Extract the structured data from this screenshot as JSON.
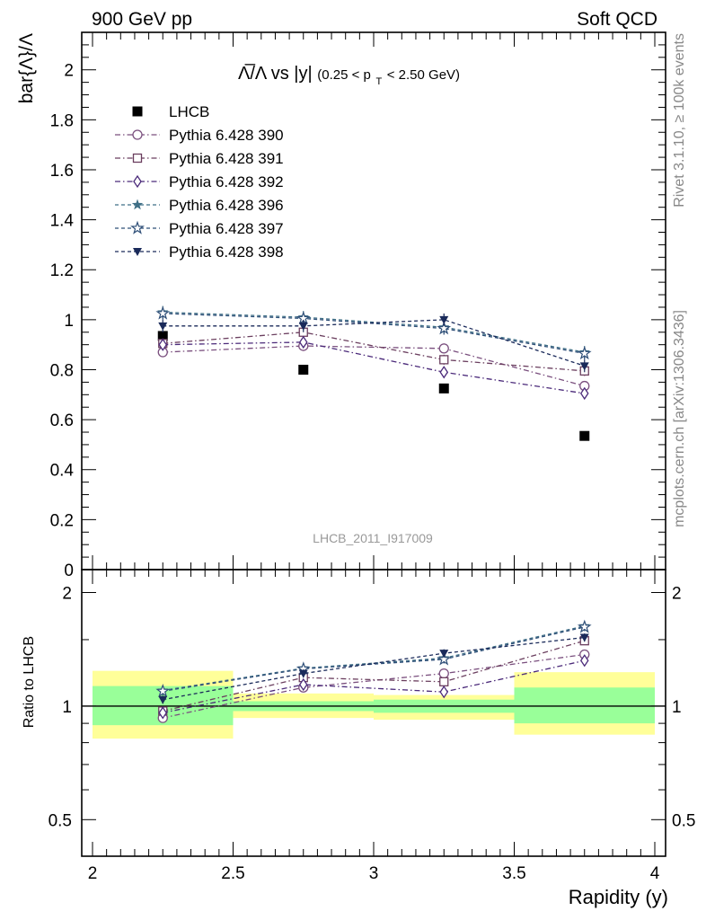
{
  "header": {
    "left": "900 GeV pp",
    "right": "Soft QCD"
  },
  "side_labels": {
    "top": "Rivet 3.1.10, ≥ 100k events",
    "bottom": "mcplots.cern.ch [arXiv:1306.3436]"
  },
  "watermark": "LHCB_2011_I917009",
  "colors": {
    "lhcb": "#000000",
    "p390": "#7a4f7e",
    "p391": "#6b3f5f",
    "p392": "#4b2a7a",
    "p396": "#3f6f86",
    "p397": "#2f4f78",
    "p398": "#1a2a5a",
    "band_green": "#99ff99",
    "band_yellow": "#ffff99"
  },
  "chart_data": [
    {
      "type": "scatter",
      "title_main": "Λ̅/Λ vs |y|",
      "title_sub": "(0.25 < p",
      "title_sub_index": "T",
      "title_sub_end": " < 2.50 GeV)",
      "ylabel": "bar{Λ}/Λ",
      "xlim": [
        2,
        4
      ],
      "ylim": [
        0,
        2.15
      ],
      "yticks": [
        0,
        0.2,
        0.4,
        0.6,
        0.8,
        1,
        1.2,
        1.4,
        1.6,
        1.8,
        2
      ],
      "ytick_labels": [
        "0",
        "0.2",
        "0.4",
        "0.6",
        "0.8",
        "1",
        "1.2",
        "1.4",
        "1.6",
        "1.8",
        "2"
      ],
      "legend_position": "top-left",
      "x": [
        2.25,
        2.75,
        3.25,
        3.75
      ],
      "series": [
        {
          "name": "LHCB",
          "marker": "square-filled",
          "color_key": "lhcb",
          "dash": "none",
          "values": [
            0.935,
            0.8,
            0.725,
            0.535
          ]
        },
        {
          "name": "Pythia 6.428 390",
          "marker": "circle-open",
          "color_key": "p390",
          "dash": "6,3,1.5,3",
          "values": [
            0.87,
            0.895,
            0.885,
            0.735
          ],
          "err": [
            0.02,
            0.02,
            0.02,
            0.02
          ]
        },
        {
          "name": "Pythia 6.428 391",
          "marker": "square-open",
          "color_key": "p391",
          "dash": "6,3,1.5,3",
          "values": [
            0.905,
            0.95,
            0.84,
            0.795
          ],
          "err": [
            0.02,
            0.02,
            0.02,
            0.02
          ]
        },
        {
          "name": "Pythia 6.428 392",
          "marker": "diamond-open",
          "color_key": "p392",
          "dash": "6,3,1.5,3",
          "values": [
            0.9,
            0.91,
            0.79,
            0.705
          ],
          "err": [
            0.02,
            0.02,
            0.02,
            0.02
          ]
        },
        {
          "name": "Pythia 6.428 396",
          "marker": "star-filled",
          "color_key": "p396",
          "dash": "4,3",
          "values": [
            1.03,
            1.01,
            0.97,
            0.87
          ],
          "err": [
            0.025,
            0.025,
            0.025,
            0.025
          ]
        },
        {
          "name": "Pythia 6.428 397",
          "marker": "star-open",
          "color_key": "p397",
          "dash": "4,3",
          "values": [
            1.025,
            1.005,
            0.965,
            0.865
          ],
          "err": [
            0.025,
            0.025,
            0.025,
            0.025
          ]
        },
        {
          "name": "Pythia 6.428 398",
          "marker": "triangle-down-filled",
          "color_key": "p398",
          "dash": "4,3",
          "values": [
            0.975,
            0.975,
            1.0,
            0.815
          ],
          "err": [
            0.025,
            0.025,
            0.025,
            0.025
          ]
        }
      ]
    },
    {
      "type": "scatter",
      "ylabel": "Ratio to LHCB",
      "xlabel": "Rapidity (y)",
      "xlim": [
        2,
        4
      ],
      "xticks": [
        2,
        2.5,
        3,
        3.5,
        4
      ],
      "xtick_labels": [
        "2",
        "2.5",
        "3",
        "3.5",
        "4"
      ],
      "ylim": [
        0.4,
        2.3
      ],
      "log_y": true,
      "yticks": [
        0.5,
        1,
        2
      ],
      "ytick_labels": [
        "0.5",
        "1",
        "2"
      ],
      "reference": 1,
      "bands": [
        {
          "x": [
            2,
            2.5
          ],
          "green": [
            0.89,
            1.13
          ],
          "yellow": [
            0.82,
            1.24
          ]
        },
        {
          "x": [
            2.5,
            3
          ],
          "green": [
            0.97,
            1.03
          ],
          "yellow": [
            0.93,
            1.08
          ]
        },
        {
          "x": [
            3,
            3.5
          ],
          "green": [
            0.96,
            1.04
          ],
          "yellow": [
            0.92,
            1.07
          ]
        },
        {
          "x": [
            3.5,
            4
          ],
          "green": [
            0.9,
            1.12
          ],
          "yellow": [
            0.84,
            1.23
          ]
        }
      ],
      "x": [
        2.25,
        2.75,
        3.25,
        3.75
      ],
      "series": [
        {
          "name": "Pythia 6.428 390",
          "color_key": "p390",
          "marker": "circle-open",
          "dash": "6,3,1.5,3",
          "values": [
            0.93,
            1.12,
            1.22,
            1.37
          ]
        },
        {
          "name": "Pythia 6.428 391",
          "color_key": "p391",
          "marker": "square-open",
          "dash": "6,3,1.5,3",
          "values": [
            0.97,
            1.19,
            1.16,
            1.49
          ]
        },
        {
          "name": "Pythia 6.428 392",
          "color_key": "p392",
          "marker": "diamond-open",
          "dash": "6,3,1.5,3",
          "values": [
            0.96,
            1.14,
            1.09,
            1.32
          ]
        },
        {
          "name": "Pythia 6.428 396",
          "color_key": "p396",
          "marker": "star-filled",
          "dash": "4,3",
          "values": [
            1.1,
            1.26,
            1.34,
            1.63
          ]
        },
        {
          "name": "Pythia 6.428 397",
          "color_key": "p397",
          "marker": "star-open",
          "dash": "4,3",
          "values": [
            1.095,
            1.255,
            1.33,
            1.62
          ]
        },
        {
          "name": "Pythia 6.428 398",
          "color_key": "p398",
          "marker": "triangle-down-filled",
          "dash": "4,3",
          "values": [
            1.04,
            1.22,
            1.38,
            1.52
          ]
        }
      ]
    }
  ]
}
